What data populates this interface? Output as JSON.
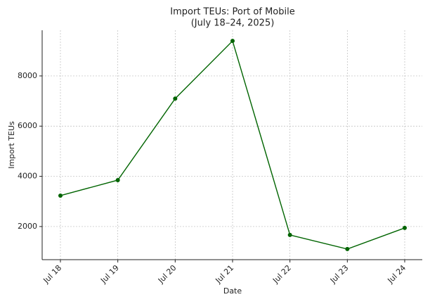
{
  "chart_data": {
    "type": "line",
    "title": "Import TEUs: Port of Mobile",
    "subtitle": "(July 18–24, 2025)",
    "x_label": "Date",
    "y_label": "Import TEUs",
    "categories": [
      "Jul 18",
      "Jul 19",
      "Jul 20",
      "Jul 21",
      "Jul 22",
      "Jul 23",
      "Jul 24"
    ],
    "series": [
      {
        "name": "Import TEUs",
        "color": "#006400",
        "values": [
          3232,
          3849,
          7098,
          9395,
          1664,
          1104,
          1944
        ]
      }
    ],
    "ylim": [
      680,
      9820
    ],
    "yticks": [
      2000,
      4000,
      6000,
      8000
    ],
    "grid": true
  }
}
